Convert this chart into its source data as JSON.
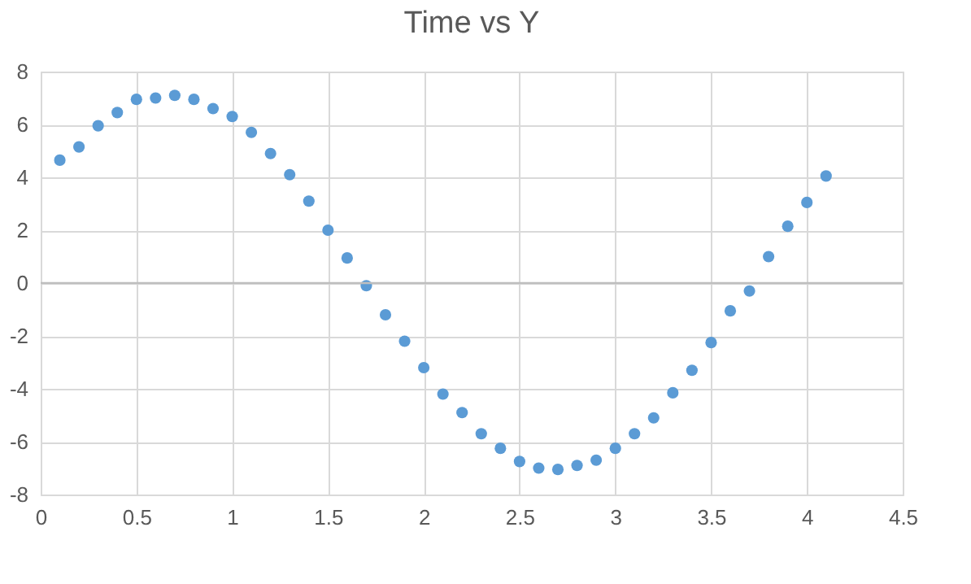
{
  "chart_data": {
    "type": "scatter",
    "title": "Time vs Y",
    "x": [
      0.1,
      0.2,
      0.3,
      0.4,
      0.5,
      0.6,
      0.7,
      0.8,
      0.9,
      1.0,
      1.1,
      1.2,
      1.3,
      1.4,
      1.5,
      1.6,
      1.7,
      1.8,
      1.9,
      2.0,
      2.1,
      2.2,
      2.3,
      2.4,
      2.5,
      2.6,
      2.7,
      2.8,
      2.9,
      3.0,
      3.1,
      3.2,
      3.3,
      3.4,
      3.5,
      3.6,
      3.7,
      3.8,
      3.9,
      4.0,
      4.1
    ],
    "series": [
      {
        "color": "#5b9bd5",
        "values": [
          4.65,
          5.15,
          5.95,
          6.45,
          6.95,
          7.0,
          7.1,
          6.95,
          6.6,
          6.3,
          5.7,
          4.9,
          4.1,
          3.1,
          2.0,
          0.95,
          -0.1,
          -1.2,
          -2.2,
          -3.2,
          -4.2,
          -4.9,
          -5.7,
          -6.25,
          -6.75,
          -7.0,
          -7.05,
          -6.9,
          -6.7,
          -6.25,
          -5.7,
          -5.1,
          -4.15,
          -3.3,
          -2.25,
          -1.05,
          -0.3,
          1.0,
          2.15,
          3.05,
          4.05
        ]
      }
    ],
    "xlim": [
      0,
      4.5
    ],
    "xticks": [
      0,
      0.5,
      1,
      1.5,
      2,
      2.5,
      3,
      3.5,
      4,
      4.5
    ],
    "ylim": [
      -8,
      8
    ],
    "yticks": [
      -8,
      -6,
      -4,
      -2,
      0,
      2,
      4,
      6,
      8
    ],
    "grid": true,
    "marker": "circle"
  }
}
